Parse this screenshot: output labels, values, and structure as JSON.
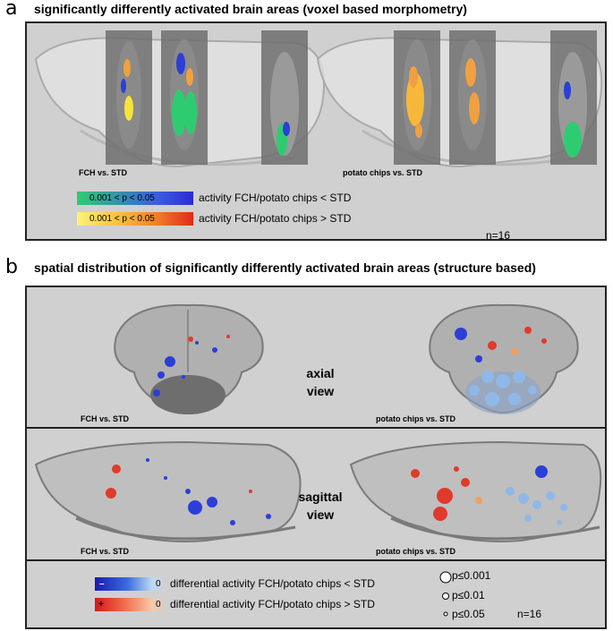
{
  "panel_a": {
    "letter": "a",
    "title": "significantly differently activated brain areas (voxel based morphometry)",
    "caption_left": "FCH vs. STD",
    "caption_right": "potato chips vs. STD",
    "legend": [
      {
        "range": "0.001 < p < 0.05",
        "text": "activity FCH/potato chips < STD"
      },
      {
        "range": "0.001 < p < 0.05",
        "text": "activity FCH/potato chips > STD"
      }
    ],
    "n_label": "n=16"
  },
  "panel_b": {
    "letter": "b",
    "title": "spatial distribution of significantly differently activated brain areas (structure based)",
    "axial": {
      "caption_left": "FCH vs. STD",
      "caption_right": "potato chips vs. STD",
      "label_line1": "axial",
      "label_line2": "view"
    },
    "sagittal": {
      "caption_left": "FCH vs. STD",
      "caption_right": "potato chips vs. STD",
      "label_line1": "sagittal",
      "label_line2": "view"
    },
    "legend": {
      "neg_sign": "–",
      "neg_zero": "0",
      "neg_text": "differential activity FCH/potato chips < STD",
      "pos_sign": "+",
      "pos_zero": "0",
      "pos_text": "differential activity FCH/potato chips > STD",
      "sizes": [
        "p≤0.001",
        "p≤0.01",
        "p≤0.05"
      ],
      "n_label": "n=16"
    }
  },
  "colors": {
    "panel_bg": "#d0d0d0",
    "blue": "#2b3fd6",
    "light_blue": "#8fb8e8",
    "red": "#e03a2a",
    "orange": "#f0a060",
    "green": "#2ecc71",
    "yellow": "#f7e33a"
  }
}
